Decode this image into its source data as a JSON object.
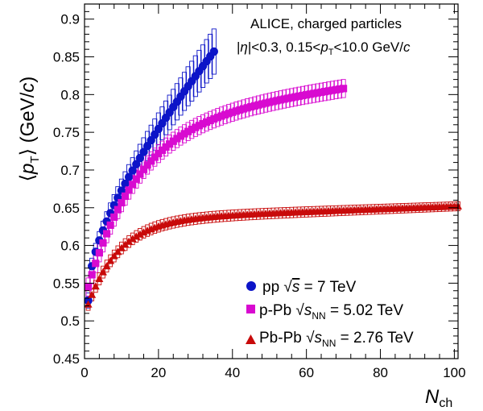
{
  "chart_data": {
    "type": "scatter",
    "title": "ALICE, charged particles",
    "subtitle": {
      "prefix": "|",
      "eta": "η",
      "cut1": "|<0.3, 0.15<",
      "p": "p",
      "T": "T",
      "cut2": "<10.0 GeV/",
      "c": "c"
    },
    "xlabel": {
      "main": "N",
      "sub": "ch"
    },
    "ylabel": {
      "lang": "⟨",
      "p": "p",
      "T": "T",
      "rang": "⟩",
      "unit": " (GeV/",
      "c": "c",
      "close": ")"
    },
    "xlim": [
      0,
      101
    ],
    "ylim": [
      0.45,
      0.92
    ],
    "x_ticks": [
      "0",
      "20",
      "40",
      "60",
      "80",
      "100"
    ],
    "y_ticks": [
      "0.45",
      "0.5",
      "0.55",
      "0.6",
      "0.65",
      "0.7",
      "0.75",
      "0.8",
      "0.85",
      "0.9"
    ],
    "legend_position": "bottom-right",
    "series": [
      {
        "name": "pp",
        "legend": {
          "label": "pp ",
          "sqrt": "√",
          "var": "s",
          "sub": "",
          "value": " = 7 TeV"
        },
        "color": "#0c14c8",
        "marker": "circle",
        "x_start": 1,
        "x_end": 35,
        "y_start": 0.527,
        "y_end": 0.857,
        "shape": "pp_curve",
        "sys_err_start": 0.01,
        "sys_err_end": 0.03
      },
      {
        "name": "p-Pb",
        "legend": {
          "label": "p-Pb ",
          "sqrt": "√",
          "var": "s",
          "sub": "NN",
          "value": " = 5.02 TeV"
        },
        "color": "#d80ad0",
        "marker": "square",
        "x_start": 1,
        "x_end": 70,
        "y_start": 0.545,
        "y_end": 0.808,
        "shape": "saturating",
        "sys_err_start": 0.012,
        "sys_err_end": 0.012
      },
      {
        "name": "Pb-Pb",
        "legend": {
          "label": "Pb-Pb ",
          "sqrt": "√",
          "var": "s",
          "sub": "NN",
          "value": " = 2.76 TeV"
        },
        "color": "#c80a0a",
        "marker": "triangle",
        "x_start": 1,
        "x_end": 101,
        "y_start": 0.522,
        "y_end": 0.652,
        "shape": "saturating_fast",
        "sys_err_start": 0.008,
        "sys_err_end": 0.006
      }
    ]
  }
}
